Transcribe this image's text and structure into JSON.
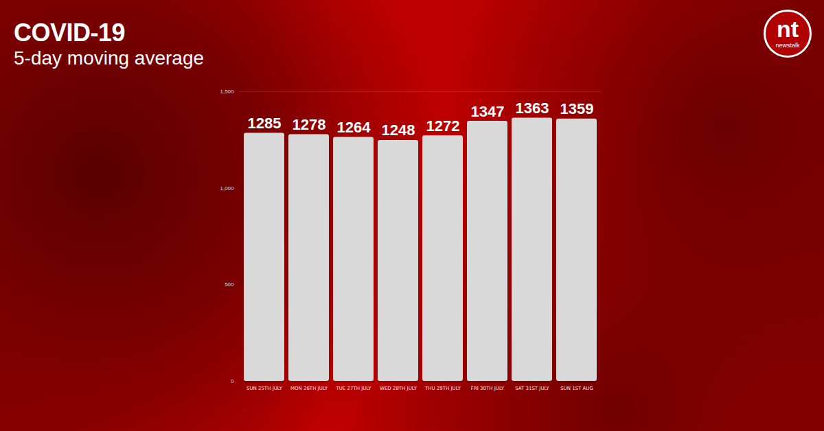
{
  "chart_data": {
    "type": "bar",
    "title": "COVID-19",
    "subtitle": "5-day moving average",
    "annotations": [
      "nt",
      "newstalk"
    ],
    "categories": [
      "SUN 25TH JULY",
      "MON 26TH JULY",
      "TUE 27TH JULY",
      "WED 28TH JULY",
      "THU 29TH JULY",
      "FRI 30TH JULY",
      "SAT 31ST JULY",
      "SUN 1ST AUG"
    ],
    "values": [
      1285,
      1278,
      1264,
      1248,
      1272,
      1347,
      1363,
      1359
    ],
    "color": "#d9d9d9",
    "ylim": [
      0,
      1500
    ],
    "yticks": [
      0,
      500,
      {
        "value": 1000,
        "label": "1,000"
      },
      {
        "value": 1500,
        "label": "1,500"
      }
    ],
    "grid": false,
    "data_labels": true
  }
}
